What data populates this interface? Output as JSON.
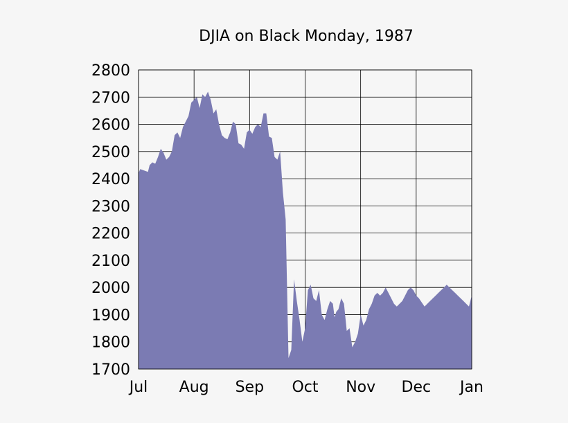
{
  "chart_data": {
    "type": "area",
    "title": "DJIA on Black Monday, 1987",
    "xlabel": "",
    "ylabel": "",
    "x_tick_labels": [
      "Jul",
      "Aug",
      "Sep",
      "Oct",
      "Nov",
      "Dec",
      "Jan"
    ],
    "y_ticks": [
      1700,
      1800,
      1900,
      2000,
      2100,
      2200,
      2300,
      2400,
      2500,
      2600,
      2700,
      2800
    ],
    "ylim": [
      1700,
      2800
    ],
    "xlim": [
      0,
      6
    ],
    "grid": true,
    "x_unit": "months from Jul 1987 (0 = Jul, 6 = Jan)",
    "fill_color": "#7b7bb3",
    "series": [
      {
        "x": [
          0,
          0.03,
          0.17,
          0.2,
          0.25,
          0.3,
          0.35,
          0.4,
          0.45,
          0.5,
          0.55,
          0.6,
          0.65,
          0.7,
          0.75,
          0.8,
          0.85,
          0.9,
          0.95,
          1.0,
          1.05,
          1.1,
          1.15,
          1.2,
          1.25,
          1.3,
          1.35,
          1.4,
          1.45,
          1.5,
          1.55,
          1.6,
          1.65,
          1.7,
          1.75,
          1.8,
          1.85,
          1.9,
          1.95,
          2.0,
          2.05,
          2.1,
          2.15,
          2.2,
          2.25,
          2.3,
          2.35,
          2.4,
          2.45,
          2.5,
          2.55,
          2.6,
          2.65,
          2.7,
          2.75,
          2.8,
          2.85,
          2.9,
          2.95,
          3.0,
          3.05,
          3.1,
          3.15,
          3.2,
          3.25,
          3.3,
          3.35,
          3.4,
          3.45,
          3.5,
          3.53,
          3.56,
          3.6,
          3.65,
          3.7,
          3.75,
          3.8,
          3.85,
          3.9,
          3.95,
          4.0,
          4.05,
          4.1,
          4.15,
          4.2,
          4.25,
          4.3,
          4.35,
          4.4,
          4.45,
          4.5,
          4.55,
          4.6,
          4.65,
          4.7,
          4.75,
          4.8,
          4.85,
          4.9,
          4.95,
          5.0,
          5.05,
          5.1,
          5.15,
          5.2,
          5.25,
          5.3,
          5.35,
          5.4,
          5.45,
          5.5,
          5.55,
          5.6,
          5.65,
          5.7,
          5.75,
          5.8,
          5.85,
          5.9,
          5.95,
          6.0,
          6.02,
          6.05,
          6.1
        ],
        "values": [
          2420,
          2435,
          2425,
          2450,
          2460,
          2455,
          2480,
          2510,
          2495,
          2470,
          2480,
          2500,
          2560,
          2570,
          2550,
          2590,
          2610,
          2630,
          2680,
          2690,
          2700,
          2660,
          2710,
          2700,
          2720,
          2690,
          2640,
          2655,
          2600,
          2560,
          2550,
          2545,
          2570,
          2610,
          2600,
          2530,
          2525,
          2510,
          2570,
          2580,
          2565,
          2590,
          2600,
          2590,
          2640,
          2640,
          2555,
          2550,
          2480,
          2470,
          2500,
          2350,
          2250,
          1740,
          1770,
          2030,
          1950,
          1880,
          1800,
          1850,
          1990,
          2010,
          1960,
          1950,
          1990,
          1900,
          1880,
          1920,
          1950,
          1940,
          1890,
          1910,
          1920,
          1960,
          1940,
          1840,
          1850,
          1780,
          1800,
          1830,
          1900,
          1860,
          1880,
          1920,
          1940,
          1970,
          1980,
          1970,
          1980,
          2000,
          1980,
          1960,
          1940,
          1930,
          1940,
          1950,
          1970,
          1990,
          2000,
          1990,
          1970,
          1960,
          1945,
          1930,
          1940,
          1950,
          1960,
          1970,
          1980,
          1990,
          2000,
          2010,
          2000,
          1990,
          1980,
          1970,
          1960,
          1950,
          1940,
          1930,
          1970,
          2000,
          2010,
          2015
        ]
      }
    ]
  }
}
